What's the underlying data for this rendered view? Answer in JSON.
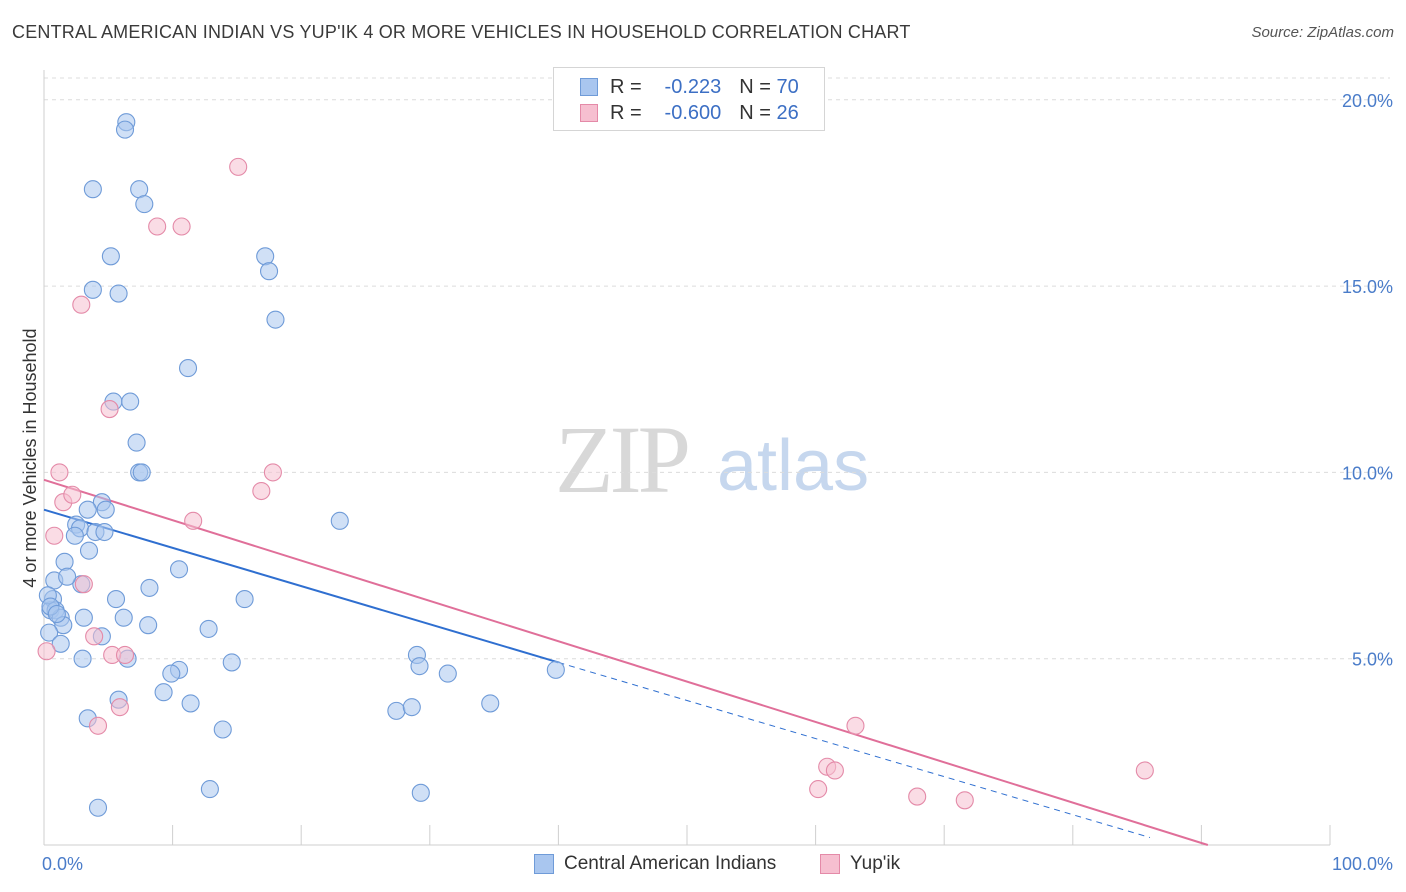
{
  "title": "CENTRAL AMERICAN INDIAN VS YUP'IK 4 OR MORE VEHICLES IN HOUSEHOLD CORRELATION CHART",
  "source": "Source: ZipAtlas.com",
  "watermark": {
    "zip": "ZIP",
    "atlas": "atlas"
  },
  "legend_top": [
    {
      "r_label": "R =",
      "r_value": "-0.223",
      "n_label": "N =",
      "n_value": "70"
    },
    {
      "r_label": "R =",
      "r_value": "-0.600",
      "n_label": "N =",
      "n_value": "26"
    }
  ],
  "colors": {
    "blue_fill": "#a9c6ef",
    "blue_stroke": "#6f9bd8",
    "blue_line": "#2f6fd0",
    "pink_fill": "#f6bfd0",
    "pink_stroke": "#e48aa8",
    "pink_line": "#e06f99",
    "grid": "#dcdcdc",
    "axis_label": "#4a7cc9"
  },
  "chart_data": {
    "type": "scatter",
    "title": "CENTRAL AMERICAN INDIAN VS YUP'IK 4 OR MORE VEHICLES IN HOUSEHOLD CORRELATION CHART",
    "xlabel": "",
    "ylabel": "4 or more Vehicles in Household",
    "xlim": [
      0,
      100
    ],
    "ylim": [
      0,
      20.8
    ],
    "x_tick_labels": [
      "0.0%",
      "100.0%"
    ],
    "y_ticks": [
      5,
      10,
      15,
      20
    ],
    "y_tick_labels": [
      "5.0%",
      "10.0%",
      "15.0%",
      "20.0%"
    ],
    "grid": true,
    "legend_position": "bottom-center",
    "series": [
      {
        "name": "Central American Indians",
        "color": "#a9c6ef",
        "trend": {
          "x": [
            0,
            40
          ],
          "y": [
            9.0,
            4.9
          ],
          "dashed_to": [
            86,
            0.2
          ]
        },
        "points": [
          [
            6.4,
            19.4
          ],
          [
            6.3,
            19.2
          ],
          [
            3.8,
            17.6
          ],
          [
            7.4,
            17.6
          ],
          [
            7.8,
            17.2
          ],
          [
            5.2,
            15.8
          ],
          [
            17.2,
            15.8
          ],
          [
            17.5,
            15.4
          ],
          [
            3.8,
            14.9
          ],
          [
            5.8,
            14.8
          ],
          [
            18.0,
            14.1
          ],
          [
            11.2,
            12.8
          ],
          [
            5.4,
            11.9
          ],
          [
            6.7,
            11.9
          ],
          [
            7.2,
            10.8
          ],
          [
            7.4,
            10.0
          ],
          [
            7.6,
            10.0
          ],
          [
            23.0,
            8.7
          ],
          [
            4.5,
            9.2
          ],
          [
            4.8,
            9.0
          ],
          [
            3.4,
            9.0
          ],
          [
            2.5,
            8.6
          ],
          [
            2.8,
            8.5
          ],
          [
            4.0,
            8.4
          ],
          [
            4.7,
            8.4
          ],
          [
            2.4,
            8.3
          ],
          [
            3.5,
            7.9
          ],
          [
            1.6,
            7.6
          ],
          [
            10.5,
            7.4
          ],
          [
            0.8,
            7.1
          ],
          [
            2.9,
            7.0
          ],
          [
            8.2,
            6.9
          ],
          [
            0.7,
            6.6
          ],
          [
            5.6,
            6.6
          ],
          [
            15.6,
            6.6
          ],
          [
            0.5,
            6.3
          ],
          [
            0.9,
            6.3
          ],
          [
            3.1,
            6.1
          ],
          [
            6.2,
            6.1
          ],
          [
            1.3,
            6.1
          ],
          [
            8.1,
            5.9
          ],
          [
            12.8,
            5.8
          ],
          [
            1.5,
            5.9
          ],
          [
            0.4,
            5.7
          ],
          [
            4.5,
            5.6
          ],
          [
            1.3,
            5.4
          ],
          [
            29.0,
            5.1
          ],
          [
            3.0,
            5.0
          ],
          [
            6.5,
            5.0
          ],
          [
            14.6,
            4.9
          ],
          [
            10.5,
            4.7
          ],
          [
            29.2,
            4.8
          ],
          [
            31.4,
            4.6
          ],
          [
            9.9,
            4.6
          ],
          [
            39.8,
            4.7
          ],
          [
            9.3,
            4.1
          ],
          [
            5.8,
            3.9
          ],
          [
            11.4,
            3.8
          ],
          [
            34.7,
            3.8
          ],
          [
            27.4,
            3.6
          ],
          [
            28.6,
            3.7
          ],
          [
            3.4,
            3.4
          ],
          [
            13.9,
            3.1
          ],
          [
            12.9,
            1.5
          ],
          [
            29.3,
            1.4
          ],
          [
            4.2,
            1.0
          ],
          [
            0.3,
            6.7
          ],
          [
            0.5,
            6.4
          ],
          [
            1.0,
            6.2
          ],
          [
            1.8,
            7.2
          ]
        ]
      },
      {
        "name": "Yup'ik",
        "color": "#f6bfd0",
        "trend": {
          "x": [
            0,
            90.5
          ],
          "y": [
            9.8,
            0
          ]
        },
        "points": [
          [
            15.1,
            18.2
          ],
          [
            8.8,
            16.6
          ],
          [
            10.7,
            16.6
          ],
          [
            2.9,
            14.5
          ],
          [
            5.1,
            11.7
          ],
          [
            1.2,
            10.0
          ],
          [
            17.8,
            10.0
          ],
          [
            16.9,
            9.5
          ],
          [
            1.5,
            9.2
          ],
          [
            2.2,
            9.4
          ],
          [
            11.6,
            8.7
          ],
          [
            0.8,
            8.3
          ],
          [
            3.1,
            7.0
          ],
          [
            3.9,
            5.6
          ],
          [
            5.3,
            5.1
          ],
          [
            6.3,
            5.1
          ],
          [
            0.2,
            5.2
          ],
          [
            5.9,
            3.7
          ],
          [
            4.2,
            3.2
          ],
          [
            63.1,
            3.2
          ],
          [
            60.9,
            2.1
          ],
          [
            61.5,
            2.0
          ],
          [
            85.6,
            2.0
          ],
          [
            60.2,
            1.5
          ],
          [
            67.9,
            1.3
          ],
          [
            71.6,
            1.2
          ]
        ]
      }
    ]
  },
  "legend_bottom": [
    {
      "label": "Central American Indians"
    },
    {
      "label": "Yup'ik"
    }
  ]
}
